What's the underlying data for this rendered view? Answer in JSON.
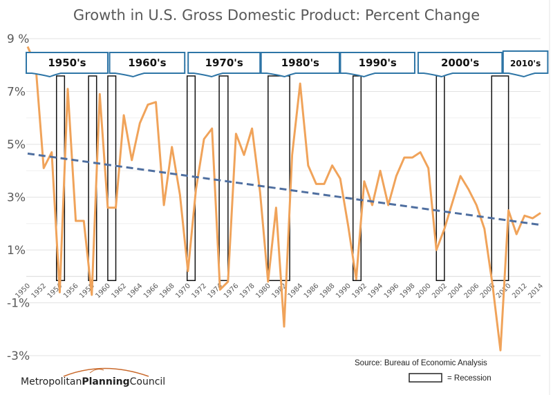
{
  "chart_data": {
    "type": "line",
    "title": "Growth in U.S. Gross Domestic Product:  Percent Change",
    "xlabel": "",
    "ylabel": "",
    "ylim": [
      -3,
      9
    ],
    "xlim": [
      1950,
      2014
    ],
    "y_ticks": [
      {
        "value": 9,
        "label": "9 %"
      },
      {
        "value": 7,
        "label": "7%"
      },
      {
        "value": 5,
        "label": "5%"
      },
      {
        "value": 3,
        "label": "3%"
      },
      {
        "value": 1,
        "label": "1%"
      },
      {
        "value": -1,
        "label": "-1%"
      },
      {
        "value": -3,
        "label": "-3%"
      }
    ],
    "x_ticks": [
      "1950",
      "1952",
      "1954",
      "1956",
      "1958",
      "1960",
      "1962",
      "1964",
      "1966",
      "1968",
      "1970",
      "1972",
      "1974",
      "1976",
      "1978",
      "1980",
      "1982",
      "1984",
      "1986",
      "1988",
      "1990",
      "1992",
      "1994",
      "1996",
      "1998",
      "2000",
      "2002",
      "2004",
      "2006",
      "2008",
      "2010",
      "2012",
      "2014"
    ],
    "grid": true,
    "series": [
      {
        "name": "GDP percent change",
        "color": "#F0A35A",
        "x": [
          1950,
          1951,
          1952,
          1953,
          1954,
          1955,
          1956,
          1957,
          1958,
          1959,
          1960,
          1961,
          1962,
          1963,
          1964,
          1965,
          1966,
          1967,
          1968,
          1969,
          1970,
          1971,
          1972,
          1973,
          1974,
          1975,
          1976,
          1977,
          1978,
          1979,
          1980,
          1981,
          1982,
          1983,
          1984,
          1985,
          1986,
          1987,
          1988,
          1989,
          1990,
          1991,
          1992,
          1993,
          1994,
          1995,
          1996,
          1997,
          1998,
          1999,
          2000,
          2001,
          2002,
          2003,
          2004,
          2005,
          2006,
          2007,
          2008,
          2009,
          2010,
          2011,
          2012,
          2013,
          2014
        ],
        "values": [
          8.7,
          8.0,
          4.1,
          4.7,
          -0.6,
          7.1,
          2.1,
          2.1,
          -0.7,
          6.9,
          2.6,
          2.6,
          6.1,
          4.4,
          5.8,
          6.5,
          6.6,
          2.7,
          4.9,
          3.1,
          0.2,
          3.3,
          5.2,
          5.6,
          -0.5,
          -0.2,
          5.4,
          4.6,
          5.6,
          3.2,
          -0.2,
          2.6,
          -1.9,
          4.6,
          7.3,
          4.2,
          3.5,
          3.5,
          4.2,
          3.7,
          1.9,
          -0.1,
          3.6,
          2.7,
          4.0,
          2.7,
          3.8,
          4.5,
          4.5,
          4.7,
          4.1,
          1.0,
          1.8,
          2.8,
          3.8,
          3.3,
          2.7,
          1.8,
          -0.3,
          -2.8,
          2.5,
          1.6,
          2.3,
          2.2,
          2.4
        ]
      },
      {
        "name": "Linear trend",
        "color": "#4F6FA0",
        "style": "dashed",
        "x": [
          1950,
          2014
        ],
        "values": [
          4.65,
          1.95
        ]
      }
    ],
    "recessions": [
      {
        "start": 1953.6,
        "end": 1954.6
      },
      {
        "start": 1957.6,
        "end": 1958.6
      },
      {
        "start": 1960.0,
        "end": 1961.0
      },
      {
        "start": 1969.9,
        "end": 1970.9
      },
      {
        "start": 1973.9,
        "end": 1975.0
      },
      {
        "start": 1980.0,
        "end": 1982.7
      },
      {
        "start": 1990.6,
        "end": 1991.6
      },
      {
        "start": 2001.0,
        "end": 2002.0
      },
      {
        "start": 2007.9,
        "end": 2010.0
      }
    ],
    "decade_callouts": [
      {
        "label": "1950's",
        "start": 1950.0,
        "end": 1960.0
      },
      {
        "label": "1960's",
        "start": 1960.4,
        "end": 1969.6
      },
      {
        "label": "1970's",
        "start": 1970.2,
        "end": 1979.0
      },
      {
        "label": "1980's",
        "start": 1979.3,
        "end": 1988.9
      },
      {
        "label": "1990's",
        "start": 1989.2,
        "end": 1998.3
      },
      {
        "label": "2000's",
        "start": 1998.9,
        "end": 2009.2
      },
      {
        "label": "2010's",
        "start": 2009.5,
        "end": 2014.9
      }
    ],
    "annotations": {
      "source": "Source:  Bureau of Economic Analysis",
      "legend_recession": "= Recession"
    }
  },
  "logo": {
    "part1": "Metropolitan",
    "part2": "Planning",
    "part3": "Council",
    "arc_color": "#C9692B"
  }
}
